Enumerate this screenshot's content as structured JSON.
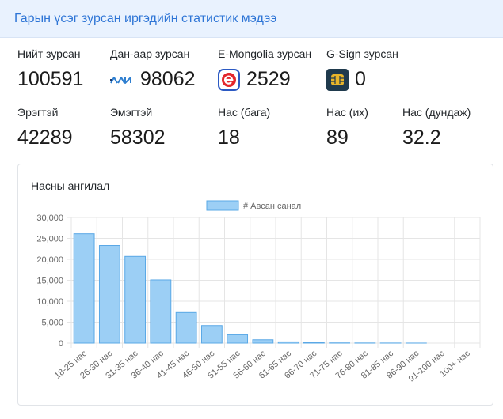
{
  "header": {
    "title": "Гарын үсэг зурсан иргэдийн статистик мэдээ"
  },
  "stats_row1": [
    {
      "label": "Нийт зурсан",
      "value": "100591",
      "icon": ""
    },
    {
      "label": "Дан-аар зурсан",
      "value": "98062",
      "icon": "dan-logo-icon"
    },
    {
      "label": "E-Mongolia зурсан",
      "value": "2529",
      "icon": "e-mongolia-icon"
    },
    {
      "label": "G-Sign зурсан",
      "value": "0",
      "icon": "g-sign-chip-icon"
    }
  ],
  "stats_row2": [
    {
      "label": "Эрэгтэй",
      "value": "42289"
    },
    {
      "label": "Эмэгтэй",
      "value": "58302"
    },
    {
      "label": "Нас (бага)",
      "value": "18"
    },
    {
      "label": "Нас (их)",
      "value": "89"
    },
    {
      "label": "Нас (дундаж)",
      "value": "32.2"
    }
  ],
  "card": {
    "title": "Насны ангилал"
  },
  "colors": {
    "bar_fill": "#9ccff5",
    "bar_stroke": "#5aa8e6",
    "header_bg": "#e9f2fe",
    "header_text": "#2e75d6"
  },
  "chart_data": {
    "type": "bar",
    "categories": [
      "18-25 нас",
      "26-30 нас",
      "31-35 нас",
      "36-40 нас",
      "41-45 нас",
      "46-50 нас",
      "51-55 нас",
      "56-60 нас",
      "61-65 нас",
      "66-70 нас",
      "71-75 нас",
      "76-80 нас",
      "81-85 нас",
      "86-90 нас",
      "91-100 нас",
      "100+ нас"
    ],
    "series": [
      {
        "name": "# Авсан санал",
        "values": [
          26100,
          23300,
          20700,
          15100,
          7300,
          4200,
          2000,
          800,
          300,
          100,
          50,
          30,
          20,
          10,
          0,
          0
        ]
      }
    ],
    "title": "Насны ангилал",
    "xlabel": "",
    "ylabel": "",
    "ylim": [
      0,
      30000
    ],
    "yticks": [
      "0",
      "5,000",
      "10,000",
      "15,000",
      "20,000",
      "25,000",
      "30,000"
    ],
    "grid": true,
    "legend": "top-center"
  }
}
